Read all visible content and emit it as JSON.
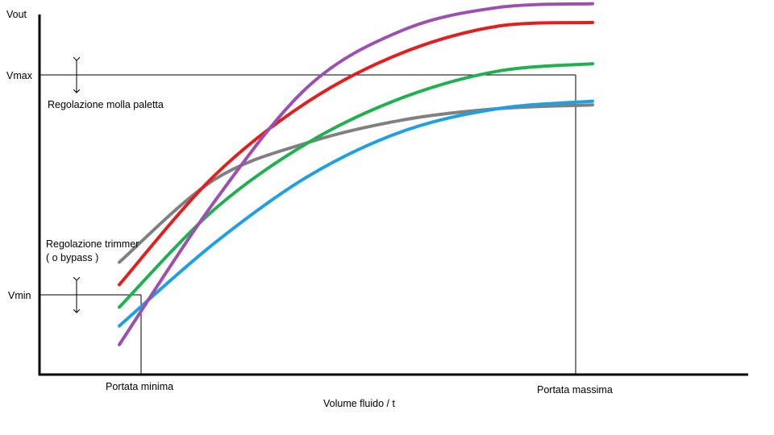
{
  "chart_data": {
    "type": "line",
    "ylabel": "Vout",
    "xlabel": "Volume fluido / t",
    "y_ticks": {
      "vmax": "Vmax",
      "vmin": "Vmin"
    },
    "x_ticks": {
      "min": "Portata minima",
      "max": "Portata massima"
    },
    "annotations": {
      "spring": "Regolazione molla paletta",
      "trimmer_1": "Regolazione trimmer",
      "trimmer_2": "( o bypass )"
    },
    "x_range": [
      0,
      1
    ],
    "y_range": [
      0,
      1
    ],
    "series": [
      {
        "color": "#808080",
        "x": [
          0.0,
          0.2,
          0.4,
          0.6,
          0.8,
          1.0
        ],
        "y": [
          0.3,
          0.52,
          0.62,
          0.68,
          0.71,
          0.72
        ]
      },
      {
        "color": "#e02020",
        "x": [
          0.0,
          0.2,
          0.4,
          0.6,
          0.8,
          1.0
        ],
        "y": [
          0.24,
          0.53,
          0.73,
          0.86,
          0.93,
          0.94
        ]
      },
      {
        "color": "#20b050",
        "x": [
          0.0,
          0.2,
          0.4,
          0.6,
          0.8,
          1.0
        ],
        "y": [
          0.18,
          0.44,
          0.62,
          0.74,
          0.81,
          0.83
        ]
      },
      {
        "color": "#20a0e0",
        "x": [
          0.0,
          0.2,
          0.4,
          0.6,
          0.8,
          1.0
        ],
        "y": [
          0.13,
          0.35,
          0.53,
          0.65,
          0.71,
          0.73
        ]
      },
      {
        "color": "#9b50b0",
        "x": [
          0.0,
          0.2,
          0.4,
          0.6,
          0.8,
          1.0
        ],
        "y": [
          0.08,
          0.46,
          0.77,
          0.92,
          0.98,
          0.99
        ]
      }
    ]
  }
}
